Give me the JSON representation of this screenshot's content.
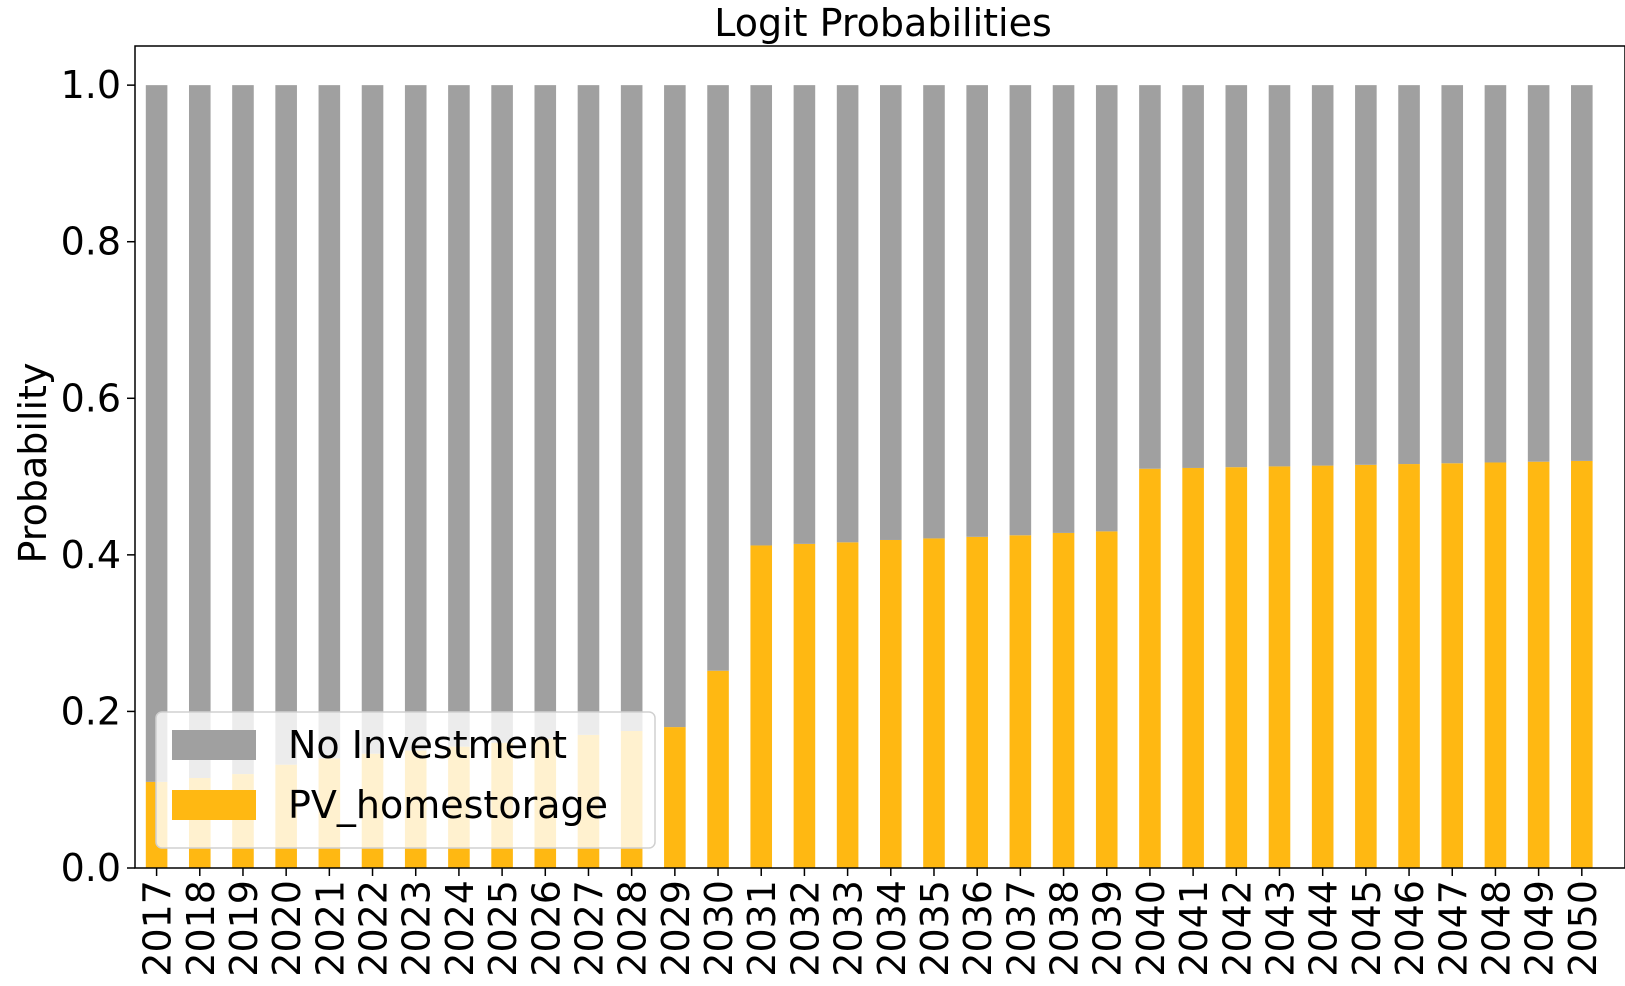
{
  "chart_data": {
    "type": "bar",
    "stacked": true,
    "title": "Logit Probabilities",
    "xlabel": "",
    "ylabel": "Probability",
    "ylim": [
      0,
      1.05
    ],
    "yticks": [
      "0.0",
      "0.2",
      "0.4",
      "0.6",
      "0.8",
      "1.0"
    ],
    "grid": false,
    "legend_position": "lower-left",
    "categories": [
      "2017",
      "2018",
      "2019",
      "2020",
      "2021",
      "2022",
      "2023",
      "2024",
      "2025",
      "2026",
      "2027",
      "2028",
      "2029",
      "2030",
      "2031",
      "2032",
      "2033",
      "2034",
      "2035",
      "2036",
      "2037",
      "2038",
      "2039",
      "2040",
      "2041",
      "2042",
      "2043",
      "2044",
      "2045",
      "2046",
      "2047",
      "2048",
      "2049",
      "2050"
    ],
    "series": [
      {
        "name": "PV_homestorage",
        "color": "#ffb812",
        "values": [
          0.11,
          0.115,
          0.12,
          0.132,
          0.14,
          0.146,
          0.15,
          0.155,
          0.16,
          0.165,
          0.17,
          0.175,
          0.18,
          0.252,
          0.412,
          0.414,
          0.416,
          0.419,
          0.421,
          0.423,
          0.425,
          0.428,
          0.43,
          0.51,
          0.511,
          0.512,
          0.513,
          0.514,
          0.515,
          0.516,
          0.517,
          0.518,
          0.519,
          0.52
        ]
      },
      {
        "name": "No Investment",
        "color": "#a0a0a0",
        "values": [
          0.89,
          0.885,
          0.88,
          0.868,
          0.86,
          0.854,
          0.85,
          0.845,
          0.84,
          0.835,
          0.83,
          0.825,
          0.82,
          0.748,
          0.588,
          0.586,
          0.584,
          0.581,
          0.579,
          0.577,
          0.575,
          0.572,
          0.57,
          0.49,
          0.489,
          0.488,
          0.487,
          0.486,
          0.485,
          0.484,
          0.483,
          0.482,
          0.481,
          0.48
        ]
      }
    ]
  }
}
